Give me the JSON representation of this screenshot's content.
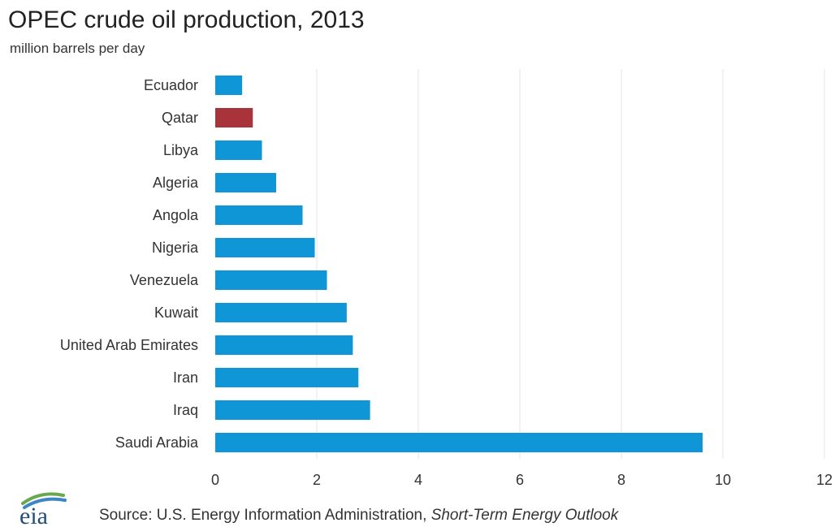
{
  "chart_data": {
    "type": "bar",
    "orientation": "horizontal",
    "title": "OPEC crude oil production, 2013",
    "subtitle": "million barrels per day",
    "categories": [
      "Ecuador",
      "Qatar",
      "Libya",
      "Algeria",
      "Angola",
      "Nigeria",
      "Venezuela",
      "Kuwait",
      "United Arab Emirates",
      "Iran",
      "Iraq",
      "Saudi Arabia"
    ],
    "values": [
      0.53,
      0.74,
      0.92,
      1.2,
      1.72,
      1.96,
      2.2,
      2.59,
      2.71,
      2.82,
      3.05,
      9.6
    ],
    "xlim": [
      0,
      12
    ],
    "xticks": [
      0,
      2,
      4,
      6,
      8,
      10,
      12
    ],
    "grid": "vertical",
    "colors": {
      "default": "#0f96d7",
      "highlight": "#a8333a"
    },
    "highlight_category": "Qatar"
  },
  "footer": {
    "logo_text": "eia",
    "source_prefix": "Source: U.S. Energy Information  Administration, ",
    "source_italic": "Short-Term  Energy  Outlook"
  }
}
